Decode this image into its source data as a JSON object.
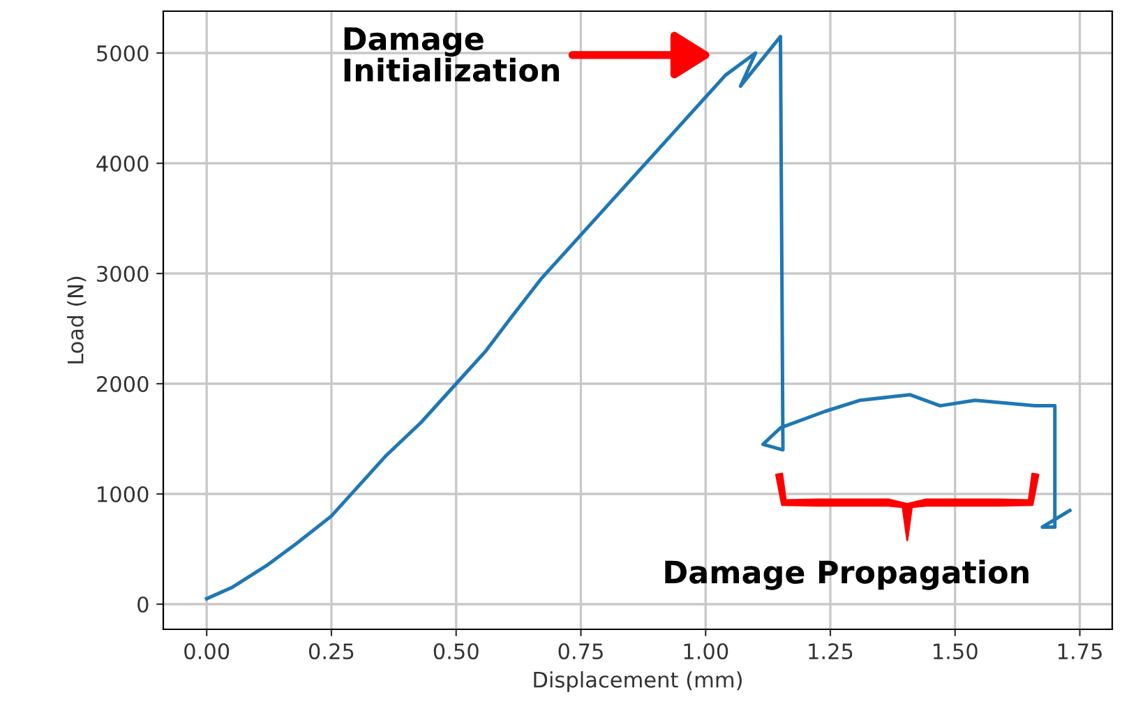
{
  "chart_data": {
    "type": "line",
    "xlabel": "Displacement (mm)",
    "ylabel": "Load (N)",
    "series": [
      {
        "color": "#1f77b4",
        "x": [
          0,
          0.05,
          0.12,
          0.18,
          0.25,
          0.3,
          0.36,
          0.43,
          0.5,
          0.56,
          0.61,
          0.67,
          0.74,
          0.82,
          0.89,
          0.97,
          1.04,
          1.1,
          1.07,
          1.15,
          1.155,
          1.115,
          1.15,
          1.24,
          1.31,
          1.41,
          1.47,
          1.54,
          1.66,
          1.7,
          1.7,
          1.675,
          1.73
        ],
        "values": [
          50,
          150,
          350,
          550,
          800,
          1050,
          1350,
          1650,
          2000,
          2300,
          2600,
          2950,
          3300,
          3700,
          4050,
          4450,
          4800,
          5000,
          4700,
          5150,
          1400,
          1450,
          1600,
          1750,
          1850,
          1900,
          1800,
          1850,
          1800,
          1800,
          700,
          700,
          850
        ]
      }
    ],
    "xlim": [
      -0.087,
      1.815
    ],
    "ylim": [
      -228,
      5380
    ],
    "xticks": [
      {
        "value": 0,
        "label": "0.00"
      },
      {
        "value": 0.25,
        "label": "0.25"
      },
      {
        "value": 0.5,
        "label": "0.50"
      },
      {
        "value": 0.75,
        "label": "0.75"
      },
      {
        "value": 1,
        "label": "1.00"
      },
      {
        "value": 1.25,
        "label": "1.25"
      },
      {
        "value": 1.5,
        "label": "1.50"
      },
      {
        "value": 1.75,
        "label": "1.75"
      }
    ],
    "yticks": [
      0,
      1000,
      2000,
      3000,
      4000,
      5000
    ],
    "grid": true,
    "marker": "none",
    "line_style": "solid",
    "annotations": [
      "Damage\nInitialization",
      "Damage Propagation"
    ]
  }
}
